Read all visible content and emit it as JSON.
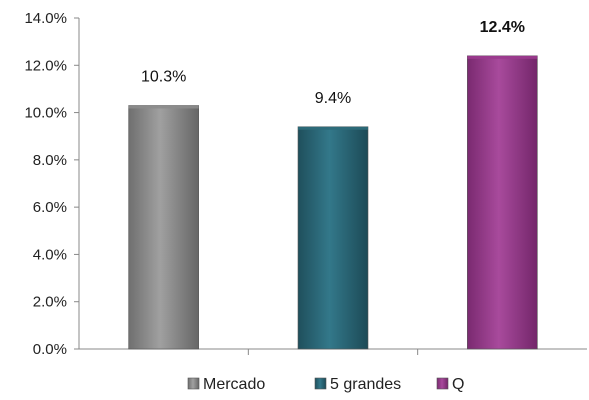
{
  "chart_data": {
    "type": "bar",
    "title": "",
    "xlabel": "",
    "ylabel": "",
    "categories": [
      "Mercado",
      "5 grandes",
      "Q"
    ],
    "values": [
      10.3,
      9.4,
      12.4
    ],
    "data_labels": [
      "10.3%",
      "9.4%",
      "12.4%"
    ],
    "bold_labels": [
      false,
      false,
      true
    ],
    "ylim": [
      0,
      14
    ],
    "yticks": [
      0,
      2,
      4,
      6,
      8,
      10,
      12,
      14
    ],
    "ytick_labels": [
      "0.0%",
      "2.0%",
      "4.0%",
      "6.0%",
      "8.0%",
      "10.0%",
      "12.0%",
      "14.0%"
    ],
    "colors": [
      "#8c8c8c",
      "#2e6b7a",
      "#9b3a8e"
    ],
    "grid": false,
    "legend_position": "bottom"
  }
}
